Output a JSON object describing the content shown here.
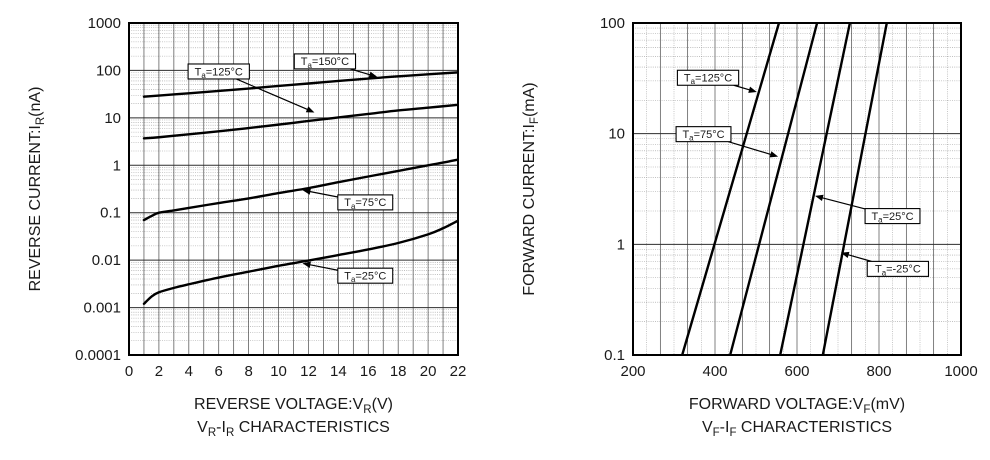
{
  "figure": {
    "background": "#ffffff"
  },
  "style": {
    "curve_color": "#000000",
    "border_color": "#000000",
    "grid_major_color": "#4a4a4a",
    "grid_decade_color": "#2e2e2e",
    "grid_minor_color": "#9b9b9b",
    "text_color": "#1a1a1a",
    "annotation_box_fill": "#ffffff",
    "annotation_box_border": "#000000"
  },
  "chart_data": [
    {
      "type": "line",
      "name": "vr-ir",
      "title": "V_R-I_R CHARACTERISTICS",
      "title_rich": [
        [
          "V",
          ""
        ],
        [
          "R",
          "sub"
        ],
        [
          "-I",
          ""
        ],
        [
          "R",
          "sub"
        ],
        [
          " CHARACTERISTICS",
          ""
        ]
      ],
      "xlabel": "REVERSE VOLTAGE:V_R(V)",
      "xlabel_rich": [
        [
          "REVERSE VOLTAGE:V",
          ""
        ],
        [
          "R",
          "sub"
        ],
        [
          "(V)",
          ""
        ]
      ],
      "ylabel": "REVERSE CURRENT:I_R(nA)",
      "ylabel_rich": [
        [
          "REVERSE CURRENT:I",
          ""
        ],
        [
          "R",
          "sub"
        ],
        [
          "(nA)",
          ""
        ]
      ],
      "x_axis": {
        "scale": "linear",
        "min": 0,
        "max": 22,
        "tick_values": [
          0,
          2,
          4,
          6,
          8,
          10,
          12,
          14,
          16,
          18,
          20,
          22
        ],
        "tick_labels": [
          "0",
          "2",
          "4",
          "6",
          "8",
          "10",
          "12",
          "14",
          "16",
          "18",
          "20",
          "22"
        ],
        "grid_major_step": 1
      },
      "y_axis": {
        "scale": "log",
        "min": 0.0001,
        "max": 1000,
        "tick_values": [
          1000,
          100,
          10,
          1,
          0.1,
          0.01,
          0.001,
          0.0001
        ],
        "tick_labels": [
          "1000",
          "100",
          "10",
          "1",
          "0.1",
          "0.01",
          "0.001",
          "0.0001"
        ],
        "log_minor_grid": true
      },
      "series": [
        {
          "name": "Ta=150°C",
          "label_rich": [
            [
              "T",
              ""
            ],
            [
              "a",
              "sub"
            ],
            [
              "=150°C",
              ""
            ]
          ],
          "points": [
            [
              1,
              28
            ],
            [
              2,
              29.5
            ],
            [
              4,
              33
            ],
            [
              6,
              37
            ],
            [
              8,
              41.5
            ],
            [
              10,
              47
            ],
            [
              12,
              53
            ],
            [
              14,
              60
            ],
            [
              16,
              67.5
            ],
            [
              18,
              75
            ],
            [
              20,
              83
            ],
            [
              22,
              91
            ]
          ],
          "label_anchor": [
            13.1,
            155
          ],
          "arrow_tip": [
            16.6,
            73
          ]
        },
        {
          "name": "Ta=125°C",
          "label_rich": [
            [
              "T",
              ""
            ],
            [
              "a",
              "sub"
            ],
            [
              "=125°C",
              ""
            ]
          ],
          "points": [
            [
              1,
              3.7
            ],
            [
              2,
              3.9
            ],
            [
              4,
              4.5
            ],
            [
              6,
              5.2
            ],
            [
              8,
              6.1
            ],
            [
              10,
              7.2
            ],
            [
              12,
              8.6
            ],
            [
              14,
              10.2
            ],
            [
              16,
              12.1
            ],
            [
              18,
              14.3
            ],
            [
              20,
              16.4
            ],
            [
              22,
              18.8
            ]
          ],
          "label_anchor": [
            6.0,
            95
          ],
          "arrow_tip": [
            12.4,
            13
          ]
        },
        {
          "name": "Ta=75°C",
          "label_rich": [
            [
              "T",
              ""
            ],
            [
              "a",
              "sub"
            ],
            [
              "=75°C",
              ""
            ]
          ],
          "points": [
            [
              1,
              0.07
            ],
            [
              1.5,
              0.085
            ],
            [
              2,
              0.1
            ],
            [
              3,
              0.112
            ],
            [
              4,
              0.126
            ],
            [
              6,
              0.16
            ],
            [
              8,
              0.2
            ],
            [
              10,
              0.26
            ],
            [
              12,
              0.33
            ],
            [
              14,
              0.44
            ],
            [
              16,
              0.58
            ],
            [
              18,
              0.76
            ],
            [
              20,
              1.0
            ],
            [
              21,
              1.14
            ],
            [
              22,
              1.32
            ]
          ],
          "label_anchor": [
            15.8,
            0.165
          ],
          "arrow_tip": [
            11.6,
            0.3
          ]
        },
        {
          "name": "Ta=25°C",
          "label_rich": [
            [
              "T",
              ""
            ],
            [
              "a",
              "sub"
            ],
            [
              "=25°C",
              ""
            ]
          ],
          "points": [
            [
              1,
              0.0012
            ],
            [
              1.5,
              0.0017
            ],
            [
              2,
              0.0021
            ],
            [
              3,
              0.0026
            ],
            [
              4,
              0.0031
            ],
            [
              6,
              0.0043
            ],
            [
              8,
              0.0057
            ],
            [
              10,
              0.0076
            ],
            [
              12,
              0.0098
            ],
            [
              14,
              0.0128
            ],
            [
              16,
              0.0168
            ],
            [
              18,
              0.023
            ],
            [
              20,
              0.035
            ],
            [
              21,
              0.047
            ],
            [
              22,
              0.068
            ]
          ],
          "label_anchor": [
            15.8,
            0.0047
          ],
          "arrow_tip": [
            11.6,
            0.0086
          ]
        }
      ]
    },
    {
      "type": "line",
      "name": "vf-if",
      "title": "V_F-I_F CHARACTERISTICS",
      "title_rich": [
        [
          "V",
          ""
        ],
        [
          "F",
          "sub"
        ],
        [
          "-I",
          ""
        ],
        [
          "F",
          "sub"
        ],
        [
          " CHARACTERISTICS",
          ""
        ]
      ],
      "xlabel": "FORWARD VOLTAGE:V_F(mV)",
      "xlabel_rich": [
        [
          "FORWARD VOLTAGE:V",
          ""
        ],
        [
          "F",
          "sub"
        ],
        [
          "(mV)",
          ""
        ]
      ],
      "ylabel": "FORWARD CURRENT:I_F(mA)",
      "ylabel_rich": [
        [
          "FORWARD CURRENT:I",
          ""
        ],
        [
          "F",
          "sub"
        ],
        [
          "(mA)",
          ""
        ]
      ],
      "x_axis": {
        "scale": "linear",
        "min": 200,
        "max": 1000,
        "tick_values": [
          200,
          400,
          600,
          800,
          1000
        ],
        "tick_labels": [
          "200",
          "400",
          "600",
          "800",
          "1000"
        ],
        "grid_major_divisions": 12,
        "grid_minor_halves": true
      },
      "y_axis": {
        "scale": "log",
        "min": 0.1,
        "max": 100,
        "tick_values": [
          100,
          10,
          1,
          0.1
        ],
        "tick_labels": [
          "100",
          "10",
          "1",
          "0.1"
        ],
        "log_minor_grid": true
      },
      "series": [
        {
          "name": "Ta=125°C",
          "label_rich": [
            [
              "T",
              ""
            ],
            [
              "a",
              "sub"
            ],
            [
              "=125°C",
              ""
            ]
          ],
          "points": [
            [
              320,
              0.1
            ],
            [
              556,
              100
            ]
          ],
          "label_anchor": [
            383,
            32
          ],
          "arrow_tip": [
            502,
            23.8
          ]
        },
        {
          "name": "Ta=75°C",
          "label_rich": [
            [
              "T",
              ""
            ],
            [
              "a",
              "sub"
            ],
            [
              "=75°C",
              ""
            ]
          ],
          "points": [
            [
              437,
              0.1
            ],
            [
              649,
              100
            ]
          ],
          "label_anchor": [
            372,
            9.9
          ],
          "arrow_tip": [
            554,
            6.2
          ]
        },
        {
          "name": "Ta=25°C",
          "label_rich": [
            [
              "T",
              ""
            ],
            [
              "a",
              "sub"
            ],
            [
              "=25°C",
              ""
            ]
          ],
          "points": [
            [
              559,
              0.1
            ],
            [
              729,
              100
            ]
          ],
          "label_anchor": [
            833,
            1.8
          ],
          "arrow_tip": [
            644,
            2.74
          ]
        },
        {
          "name": "Ta=-25°C",
          "label_rich": [
            [
              "T",
              ""
            ],
            [
              "a",
              "sub"
            ],
            [
              "=-25°C",
              ""
            ]
          ],
          "points": [
            [
              663,
              0.1
            ],
            [
              819,
              100
            ]
          ],
          "label_anchor": [
            846,
            0.6
          ],
          "arrow_tip": [
            707,
            0.84
          ]
        }
      ]
    }
  ]
}
